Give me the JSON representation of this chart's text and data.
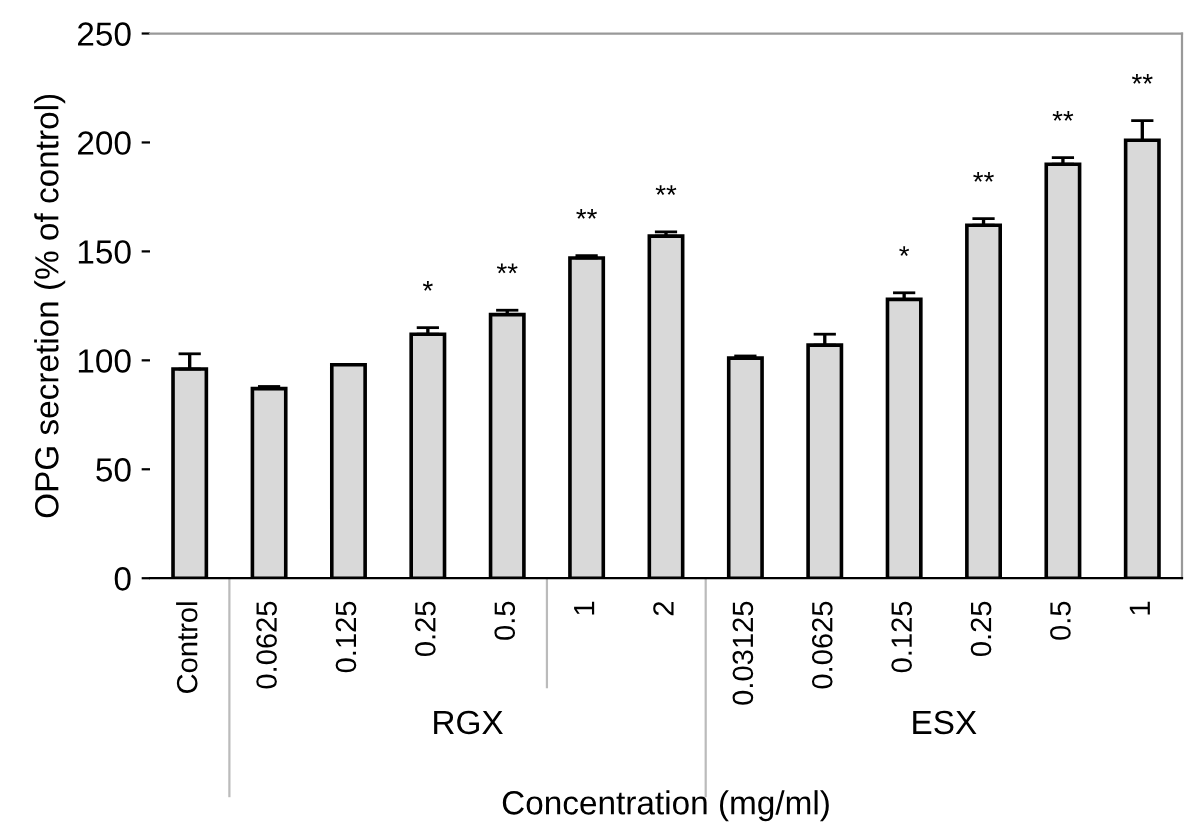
{
  "chart_data": {
    "type": "bar",
    "xlabel": "Concentration (mg/ml)",
    "ylabel": "OPG secretion (% of control)",
    "categories": [
      "Control",
      "0.0625",
      "0.125",
      "0.25",
      "0.5",
      "1",
      "2",
      "0.03125",
      "0.0625",
      "0.125",
      "0.25",
      "0.5",
      "1"
    ],
    "values": [
      96,
      87,
      98,
      112,
      121,
      147,
      157,
      101,
      107,
      128,
      162,
      190,
      201
    ],
    "errors": [
      7,
      1,
      null,
      3,
      2,
      1,
      2,
      1,
      5,
      3,
      3,
      3,
      9
    ],
    "value_labels": [
      null,
      null,
      null,
      "*",
      "**",
      "**",
      "**",
      null,
      null,
      "*",
      "**",
      "**",
      "**"
    ],
    "color": "#d9d9d9",
    "annotations": [
      "RGX",
      "ESX"
    ],
    "ylim": [
      0,
      250
    ],
    "yticks": [
      0,
      50,
      100,
      150,
      200,
      250
    ],
    "grid": false
  }
}
